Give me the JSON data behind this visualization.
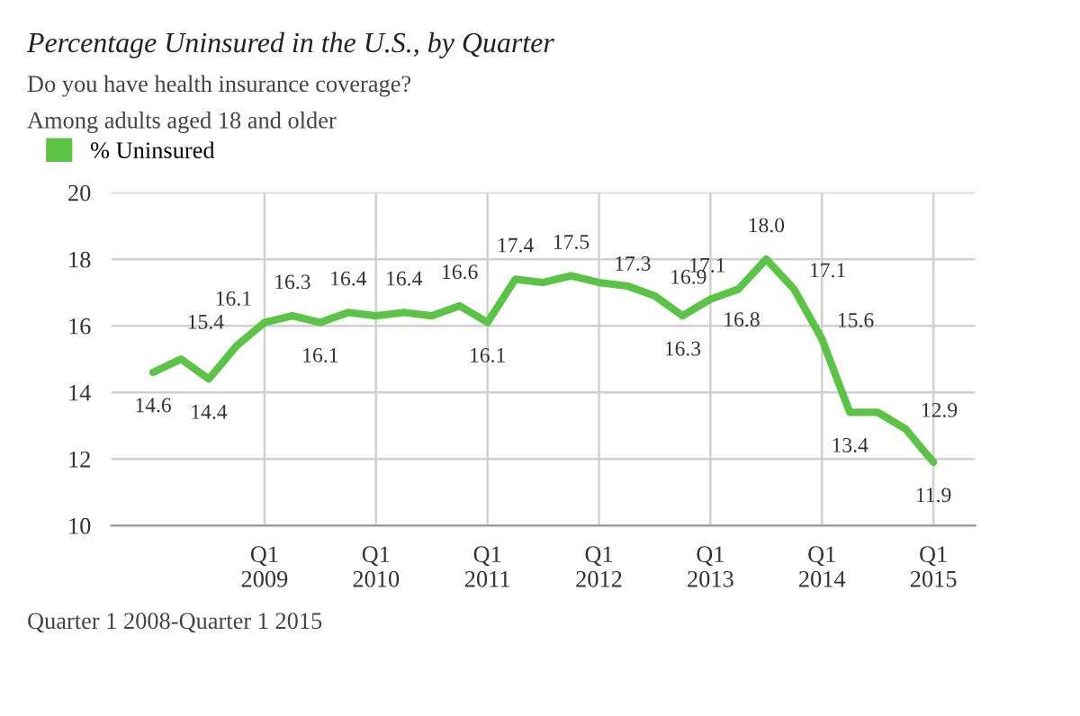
{
  "chart_data": {
    "type": "line",
    "title": "Percentage Uninsured in the U.S., by Quarter",
    "subtitle": "Do you have health insurance coverage?\nAmong adults aged 18 and older",
    "categories": [
      null,
      null,
      null,
      null,
      "Q1\n2009",
      null,
      null,
      null,
      "Q1\n2010",
      null,
      null,
      null,
      "Q1\n2011",
      null,
      null,
      null,
      "Q1\n2012",
      null,
      null,
      null,
      "Q1\n2013",
      null,
      null,
      null,
      "Q1\n2014",
      null,
      null,
      null,
      "Q1\n2015"
    ],
    "series": [
      {
        "name": "% Uninsured",
        "color": "#5bc346",
        "values": [
          14.6,
          15.0,
          14.4,
          15.4,
          16.1,
          16.3,
          16.1,
          16.4,
          16.3,
          16.4,
          16.3,
          16.6,
          16.1,
          17.4,
          17.3,
          17.5,
          17.3,
          17.2,
          16.9,
          16.3,
          16.8,
          17.1,
          18.0,
          17.1,
          15.6,
          13.4,
          13.4,
          12.9,
          11.9
        ],
        "value_labels": [
          "14.6",
          null,
          "14.4",
          "15.4",
          "16.1",
          "16.3",
          "16.1",
          "16.4",
          null,
          "16.4",
          null,
          "16.6",
          "16.1",
          "17.4",
          null,
          "17.5",
          "17.3",
          null,
          "16.9",
          "16.3",
          "16.8",
          "17.1",
          "18.0",
          "17.1",
          "15.6",
          "13.4",
          null,
          "12.9",
          "11.9"
        ]
      }
    ],
    "ylim": [
      10,
      20
    ],
    "yticks": [
      10,
      12,
      14,
      16,
      18,
      20
    ],
    "grid": true,
    "legend": "top left",
    "marker": "none",
    "line_style": "solid",
    "annotations": [
      "Quarter 1 2008-Quarter 1 2015"
    ]
  }
}
